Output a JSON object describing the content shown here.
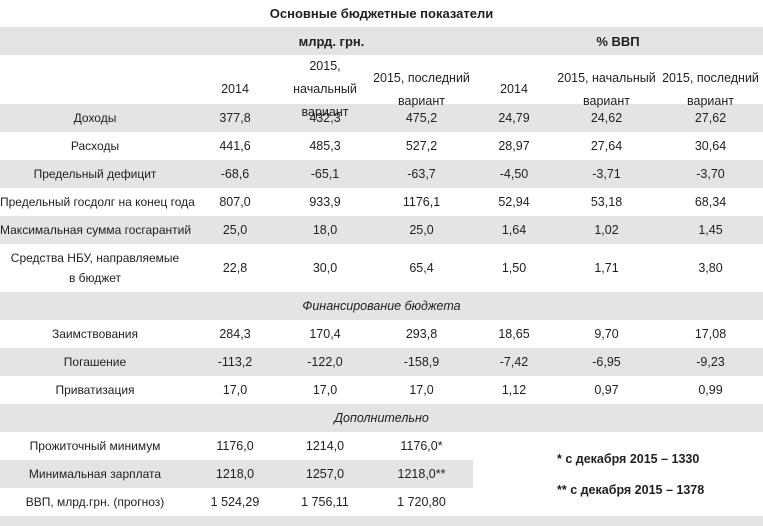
{
  "table": {
    "title": "Основные бюджетные показатели",
    "group_headers": {
      "money": "млрд. грн.",
      "gdp": "% ВВП"
    },
    "column_headers": {
      "y2014": "2014",
      "y2015_initial_line1": "2015, начальный",
      "y2015_initial_line2": "вариант",
      "y2015_final_line1": "2015, последний",
      "y2015_final_line2": "вариант"
    },
    "main_rows": [
      {
        "label": "Доходы",
        "values": [
          "377,8",
          "432,3",
          "475,2",
          "24,79",
          "24,62",
          "27,62"
        ]
      },
      {
        "label": "Расходы",
        "values": [
          "441,6",
          "485,3",
          "527,2",
          "28,97",
          "27,64",
          "30,64"
        ]
      },
      {
        "label": "Предельный дефицит",
        "values": [
          "-68,6",
          "-65,1",
          "-63,7",
          "-4,50",
          "-3,71",
          "-3,70"
        ]
      },
      {
        "label": "Предельный госдолг на конец года",
        "values": [
          "807,0",
          "933,9",
          "1176,1",
          "52,94",
          "53,18",
          "68,34"
        ]
      },
      {
        "label": "Максимальная сумма госгарантий",
        "values": [
          "25,0",
          "18,0",
          "25,0",
          "1,64",
          "1,02",
          "1,45"
        ]
      },
      {
        "label": "Средства НБУ, направляемые в бюджет",
        "values": [
          "22,8",
          "30,0",
          "65,4",
          "1,50",
          "1,71",
          "3,80"
        ]
      }
    ],
    "financing_section": {
      "header": "Финансирование бюджета",
      "rows": [
        {
          "label": "Заимствования",
          "values": [
            "284,3",
            "170,4",
            "293,8",
            "18,65",
            "9,70",
            "17,08"
          ]
        },
        {
          "label": "Погашение",
          "values": [
            "-113,2",
            "-122,0",
            "-158,9",
            "-7,42",
            "-6,95",
            "-9,23"
          ]
        },
        {
          "label": "Приватизация",
          "values": [
            "17,0",
            "17,0",
            "17,0",
            "1,12",
            "0,97",
            "0,99"
          ]
        }
      ]
    },
    "additional_section": {
      "header": "Дополнительно",
      "rows": [
        {
          "label": "Прожиточный минимум",
          "values": [
            "1176,0",
            "1214,0",
            "1176,0*"
          ]
        },
        {
          "label": "Минимальная зарплата",
          "values": [
            "1218,0",
            "1257,0",
            "1218,0**"
          ]
        },
        {
          "label": "ВВП, млрд.грн. (прогноз)",
          "values": [
            "1 524,29",
            "1 756,11",
            "1 720,80"
          ]
        }
      ],
      "footnotes": [
        "* с декабря 2015 – 1330",
        "** с декабря 2015 – 1378"
      ]
    },
    "colors": {
      "stripe_gray": "#e4e4e4",
      "text": "#1f1f1f"
    }
  }
}
